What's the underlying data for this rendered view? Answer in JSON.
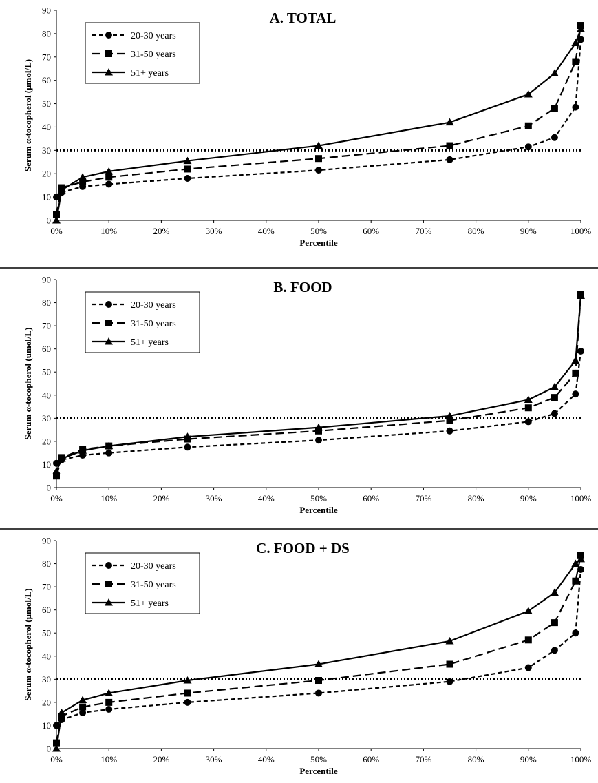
{
  "chart_data": [
    {
      "type": "line",
      "title": "A. TOTAL",
      "xlabel": "Percentile",
      "ylabel": "Serum α-tocopherol (μmol/L)",
      "x": [
        0,
        1,
        5,
        10,
        25,
        50,
        75,
        90,
        95,
        99,
        100
      ],
      "x_ticks": [
        "0%",
        "10%",
        "20%",
        "30%",
        "40%",
        "50%",
        "60%",
        "70%",
        "80%",
        "90%",
        "100%"
      ],
      "y_ticks": [
        "0",
        "10",
        "20",
        "30",
        "40",
        "50",
        "60",
        "70",
        "80",
        "90"
      ],
      "xlim": [
        0,
        100
      ],
      "ylim": [
        0,
        90
      ],
      "reference_line": 30,
      "legend_position": "top-left",
      "series": [
        {
          "name": "20-30 years",
          "marker": "circle",
          "dash": "short-dash",
          "values": [
            10,
            12,
            14.5,
            15.5,
            18,
            21.5,
            26,
            31.5,
            35.5,
            48.5,
            77.5
          ]
        },
        {
          "name": "31-50 years",
          "marker": "square",
          "dash": "long-dash",
          "values": [
            2.5,
            14,
            16.5,
            18.5,
            22,
            26.5,
            32,
            40.5,
            48,
            68,
            83.5
          ]
        },
        {
          "name": "51+ years",
          "marker": "triangle",
          "dash": "solid",
          "values": [
            0,
            13,
            18.5,
            21,
            25.5,
            32,
            42,
            54,
            63,
            76,
            82
          ]
        }
      ]
    },
    {
      "type": "line",
      "title": "B. FOOD",
      "xlabel": "Percentile",
      "ylabel": "Serum α-tocopherol (umol/L)",
      "x": [
        0,
        1,
        5,
        10,
        25,
        50,
        75,
        90,
        95,
        99,
        100
      ],
      "x_ticks": [
        "0%",
        "10%",
        "20%",
        "30%",
        "40%",
        "50%",
        "60%",
        "70%",
        "80%",
        "90%",
        "100%"
      ],
      "y_ticks": [
        "0",
        "10",
        "20",
        "30",
        "40",
        "50",
        "60",
        "70",
        "80",
        "90"
      ],
      "xlim": [
        0,
        100
      ],
      "ylim": [
        0,
        90
      ],
      "reference_line": 30,
      "legend_position": "top-left",
      "series": [
        {
          "name": "20-30 years",
          "marker": "circle",
          "dash": "short-dash",
          "values": [
            10.5,
            12,
            14,
            15,
            17.5,
            20.5,
            24.5,
            28.5,
            32,
            40.5,
            59
          ]
        },
        {
          "name": "31-50 years",
          "marker": "square",
          "dash": "long-dash",
          "values": [
            5,
            13,
            16.5,
            18,
            21,
            24.5,
            29,
            34.5,
            39,
            49.5,
            83.5
          ]
        },
        {
          "name": "51+ years",
          "marker": "triangle",
          "dash": "solid",
          "values": [
            7,
            12.5,
            16,
            18,
            22,
            26,
            31,
            38,
            43.5,
            55,
            83
          ]
        }
      ]
    },
    {
      "type": "line",
      "title": "C. FOOD + DS",
      "xlabel": "Percentile",
      "ylabel": "Serum α-tocopherol (μmol/L)",
      "x": [
        0,
        1,
        5,
        10,
        25,
        50,
        75,
        90,
        95,
        99,
        100
      ],
      "x_ticks": [
        "0%",
        "10%",
        "20%",
        "30%",
        "40%",
        "50%",
        "60%",
        "70%",
        "80%",
        "90%",
        "100%"
      ],
      "y_ticks": [
        "0",
        "10",
        "20",
        "30",
        "40",
        "50",
        "60",
        "70",
        "80",
        "90"
      ],
      "xlim": [
        0,
        100
      ],
      "ylim": [
        0,
        90
      ],
      "reference_line": 30,
      "legend_position": "top-left",
      "series": [
        {
          "name": "20-30 years",
          "marker": "circle",
          "dash": "short-dash",
          "values": [
            10,
            12.5,
            15.5,
            17,
            20,
            24,
            29,
            35,
            42.5,
            50,
            77.5
          ]
        },
        {
          "name": "31-50 years",
          "marker": "square",
          "dash": "long-dash",
          "values": [
            2.5,
            14,
            18,
            20,
            24,
            29.5,
            36.5,
            47,
            54.5,
            72.5,
            83.5
          ]
        },
        {
          "name": "51+ years",
          "marker": "triangle",
          "dash": "solid",
          "values": [
            0,
            15.5,
            21,
            24,
            29.5,
            36.5,
            46.5,
            59.5,
            67.5,
            80,
            82
          ]
        }
      ]
    }
  ]
}
